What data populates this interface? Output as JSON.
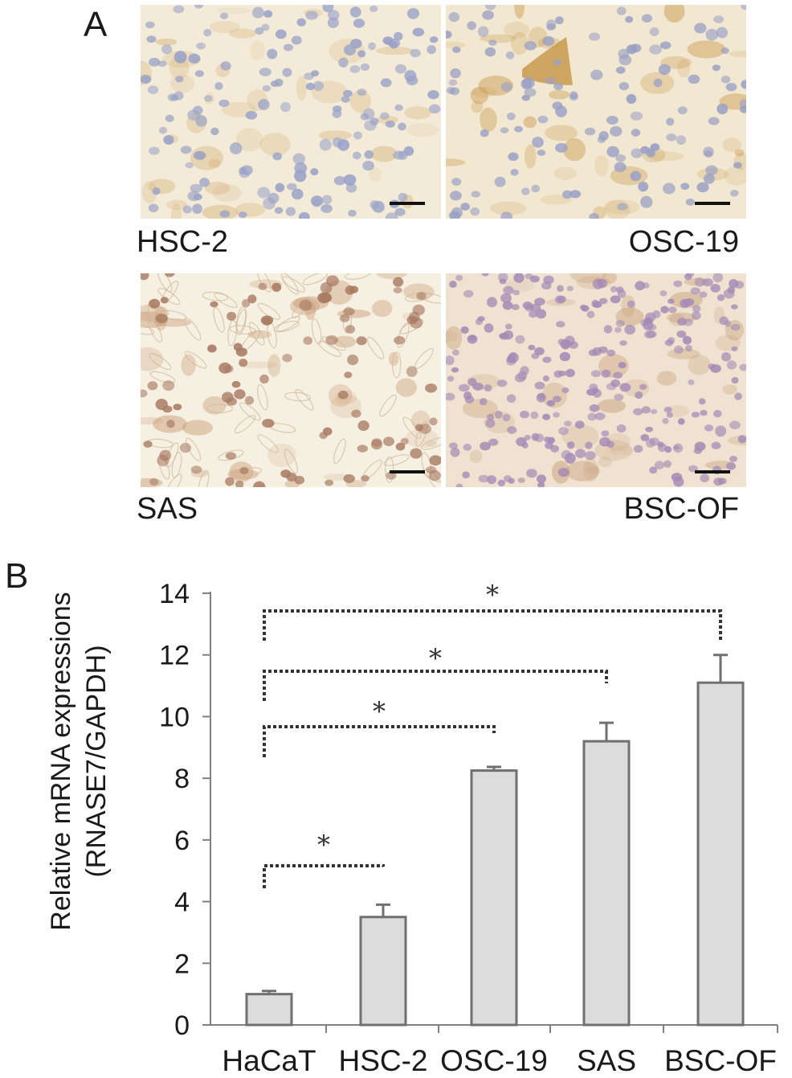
{
  "panel_a": {
    "letter": "A",
    "images": [
      {
        "label": "HSC-2",
        "bg": "#f3ebd8",
        "stain": "#d8b680",
        "nucleus": "#9aa2c7"
      },
      {
        "label": "OSC-19",
        "bg": "#f2e8d2",
        "stain": "#c99a4e",
        "nucleus": "#9aa0c4"
      },
      {
        "label": "SAS",
        "bg": "#f6f0e2",
        "stain": "#c89a72",
        "nucleus": "#a87a62"
      },
      {
        "label": "BSC-OF",
        "bg": "#efe2d0",
        "stain": "#c8a07a",
        "nucleus": "#a48ab6"
      }
    ]
  },
  "chart_data": {
    "panel_letter": "B",
    "type": "bar",
    "categories": [
      "HaCaT",
      "HSC-2",
      "OSC-19",
      "SAS",
      "BSC-OF"
    ],
    "values": [
      1.0,
      3.5,
      8.25,
      9.2,
      11.1
    ],
    "errors": [
      0.1,
      0.4,
      0.12,
      0.6,
      0.9
    ],
    "ylabel_line1": "Relative mRNA expressions",
    "ylabel_line2": "(RNASE7/GAPDH)",
    "ylim": [
      0,
      14
    ],
    "yticks": [
      0,
      2,
      4,
      6,
      8,
      10,
      12,
      14
    ],
    "bar_color": "#dcdcdc",
    "bar_edge": "#707070",
    "significance": [
      {
        "from": "HaCaT",
        "to": "HSC-2",
        "label": "*"
      },
      {
        "from": "HaCaT",
        "to": "OSC-19",
        "label": "*"
      },
      {
        "from": "HaCaT",
        "to": "SAS",
        "label": "*"
      },
      {
        "from": "HaCaT",
        "to": "BSC-OF",
        "label": "*"
      }
    ]
  }
}
